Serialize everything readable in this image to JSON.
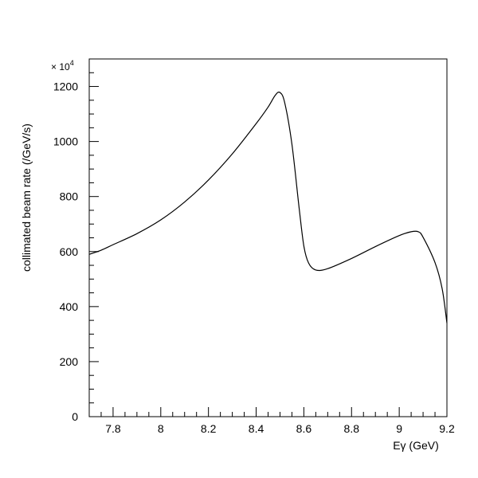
{
  "chart_data": {
    "type": "line",
    "title": "",
    "xlabel": "Eγ (GeV)",
    "ylabel": "collimated beam rate (/GeV/s)",
    "y_multiplier": {
      "base": "× 10",
      "exponent": "4"
    },
    "xlim": [
      7.7,
      9.2
    ],
    "ylim": [
      0,
      1300
    ],
    "xticks": [
      7.8,
      8,
      8.2,
      8.4,
      8.6,
      8.8,
      9,
      9.2
    ],
    "xtick_labels": [
      "7.8",
      "8",
      "8.2",
      "8.4",
      "8.6",
      "8.8",
      "9",
      "9.2"
    ],
    "yticks": [
      0,
      200,
      400,
      600,
      800,
      1000,
      1200
    ],
    "ytick_labels": [
      "0",
      "200",
      "400",
      "600",
      "800",
      "1000",
      "1200"
    ],
    "grid": false,
    "series": [
      {
        "x": [
          7.7,
          7.75,
          7.8,
          7.9,
          8.0,
          8.1,
          8.2,
          8.3,
          8.4,
          8.45,
          8.48,
          8.5,
          8.52,
          8.55,
          8.58,
          8.6,
          8.62,
          8.65,
          8.7,
          8.8,
          8.9,
          9.0,
          9.05,
          9.08,
          9.1,
          9.15,
          9.18,
          9.2
        ],
        "y": [
          590,
          605,
          625,
          665,
          715,
          780,
          860,
          955,
          1065,
          1125,
          1168,
          1178,
          1140,
          990,
          760,
          620,
          558,
          533,
          538,
          575,
          618,
          658,
          672,
          672,
          652,
          560,
          465,
          340
        ]
      }
    ]
  }
}
